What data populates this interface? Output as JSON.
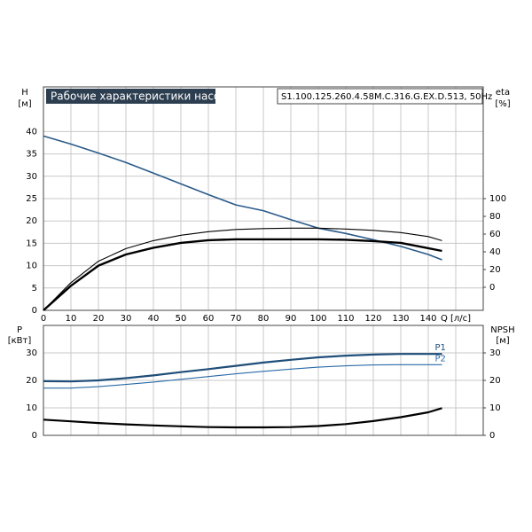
{
  "chart_data": [
    {
      "type": "line",
      "title": "Рабочие характеристики насоса",
      "subtitle": "S1.100.125.260.4.58M.C.316.G.EX.D.513, 50Hz",
      "y_label": "H",
      "y_unit": "[м]",
      "y2_label": "eta",
      "y2_unit": "[%]",
      "x_label": "Q [л/с]",
      "x": [
        0,
        10,
        20,
        30,
        40,
        50,
        60,
        70,
        80,
        90,
        100,
        110,
        120,
        130,
        140,
        145
      ],
      "series": [
        {
          "color": "#2a5a8a",
          "linewidth": 1.6,
          "values": [
            39,
            37.2,
            35.2,
            33.1,
            30.7,
            28.3,
            25.9,
            23.6,
            22.3,
            20.3,
            18.4,
            17.2,
            15.8,
            14.3,
            12.5,
            11.3
          ]
        },
        {
          "color": "#000000",
          "linewidth": 2.4,
          "values": [
            0,
            5.5,
            10,
            12.5,
            14,
            15.1,
            15.7,
            15.9,
            15.9,
            15.9,
            15.9,
            15.8,
            15.5,
            15.1,
            13.9,
            13.3
          ]
        },
        {
          "color": "#000000",
          "linewidth": 1.1,
          "values": [
            0,
            6.2,
            11,
            13.8,
            15.6,
            16.8,
            17.6,
            18.1,
            18.3,
            18.4,
            18.4,
            18.2,
            17.9,
            17.4,
            16.5,
            15.6
          ]
        }
      ],
      "xlim": [
        0,
        160
      ],
      "xticks": [
        0,
        10,
        20,
        30,
        40,
        50,
        60,
        70,
        80,
        90,
        100,
        110,
        120,
        130,
        140
      ],
      "ylim": [
        0,
        50
      ],
      "yticks": [
        0,
        5,
        10,
        15,
        20,
        25,
        30,
        35,
        40
      ],
      "y2lim": [
        -26,
        226
      ],
      "y2ticks": [
        0,
        20,
        40,
        60,
        80,
        100
      ],
      "grid": true
    },
    {
      "type": "line",
      "y_label": "P",
      "y_unit": "[кВт]",
      "y2_label": "NPSH",
      "y2_unit": "[м]",
      "x": [
        0,
        10,
        20,
        30,
        40,
        50,
        60,
        70,
        80,
        90,
        100,
        110,
        120,
        130,
        140,
        145
      ],
      "series": [
        {
          "name": "P1",
          "color": "#1f4e79",
          "linewidth": 2.2,
          "values": [
            19.7,
            19.6,
            20,
            20.8,
            21.8,
            23,
            24.1,
            25.3,
            26.5,
            27.5,
            28.4,
            29,
            29.4,
            29.6,
            29.6,
            29.6
          ]
        },
        {
          "name": "P2",
          "color": "#2a6aa8",
          "linewidth": 1.1,
          "values": [
            17.2,
            17.2,
            17.7,
            18.5,
            19.4,
            20.4,
            21.4,
            22.4,
            23.3,
            24.1,
            24.8,
            25.3,
            25.6,
            25.7,
            25.7,
            25.7
          ]
        },
        {
          "axis": "y2",
          "color": "#000000",
          "linewidth": 2.2,
          "values": [
            5.7,
            5.1,
            4.5,
            4,
            3.6,
            3.3,
            3,
            2.9,
            2.9,
            3,
            3.4,
            4.1,
            5.2,
            6.6,
            8.4,
            9.9
          ]
        }
      ],
      "xlim": [
        0,
        160
      ],
      "xticks": [
        0,
        10,
        20,
        30,
        40,
        50,
        60,
        70,
        80,
        90,
        100,
        110,
        120,
        130,
        140
      ],
      "ylim": [
        0,
        40
      ],
      "yticks": [
        0,
        10,
        20,
        30
      ],
      "y2lim": [
        0,
        40
      ],
      "y2ticks": [
        0,
        10,
        20,
        30
      ],
      "grid": true
    }
  ]
}
